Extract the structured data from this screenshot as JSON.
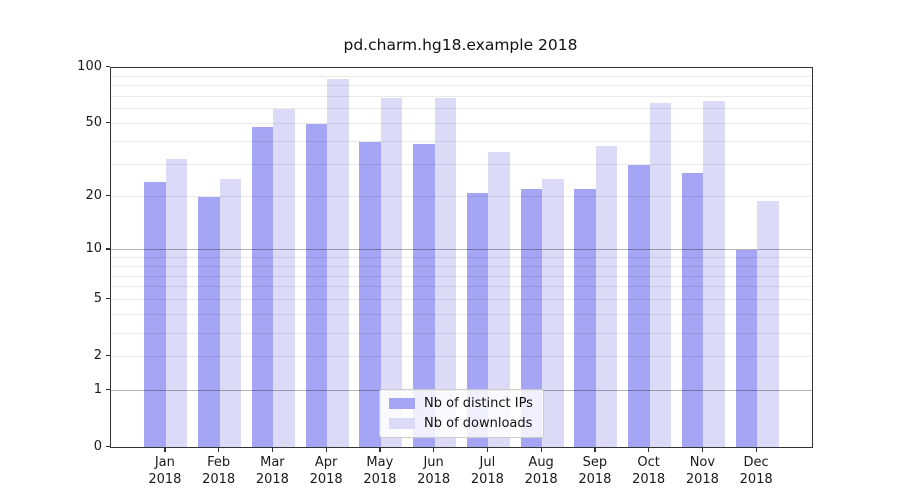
{
  "title": "pd.charm.hg18.example 2018",
  "colors": {
    "distinct_ips_bar": "#a5a5f5",
    "downloads_bar": "#dbdbf8",
    "axis_spine": "#333333",
    "grid_major": "#b3b3b3",
    "grid_minor": "#e9e9e9",
    "text": "#1a1a1a"
  },
  "chart_data": {
    "type": "bar",
    "title": "pd.charm.hg18.example 2018",
    "categories": [
      "Jan",
      "Feb",
      "Mar",
      "Apr",
      "May",
      "Jun",
      "Jul",
      "Aug",
      "Sep",
      "Oct",
      "Nov",
      "Dec"
    ],
    "year_label": "2018",
    "series": [
      {
        "name": "Nb of distinct IPs",
        "color": "#a5a5f5",
        "values": [
          24,
          20,
          48,
          50,
          40,
          39,
          21,
          22,
          22,
          30,
          27,
          10
        ]
      },
      {
        "name": "Nb of downloads",
        "color": "#dbdbf8",
        "values": [
          32,
          25,
          60,
          87,
          69,
          69,
          35,
          25,
          38,
          65,
          66,
          19
        ]
      }
    ],
    "xlabel": "",
    "ylabel": "",
    "yticks": [
      0,
      1,
      2,
      5,
      10,
      20,
      50,
      100
    ],
    "minor_gridlines": [
      2,
      3,
      4,
      5,
      6,
      7,
      8,
      9,
      20,
      30,
      40,
      50,
      60,
      70,
      80,
      90
    ],
    "major_gridlines": [
      1,
      10
    ],
    "scale": "log(value+1)",
    "ylim": [
      0,
      100
    ],
    "grid": true,
    "legend_position": "lower center"
  }
}
